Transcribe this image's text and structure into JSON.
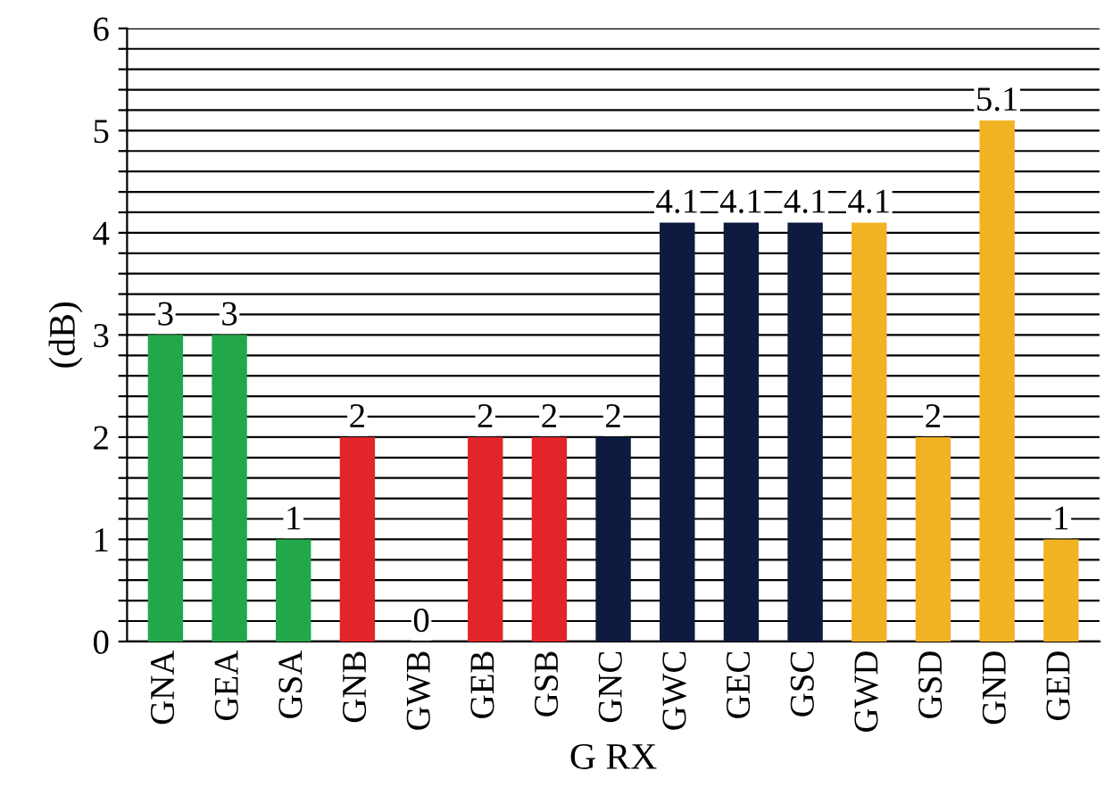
{
  "chart_data": {
    "type": "bar",
    "xlabel": "G RX",
    "ylabel": "(dB)",
    "categories": [
      "GNA",
      "GEA",
      "GSA",
      "GNB",
      "GWB",
      "GEB",
      "GSB",
      "GNC",
      "GWC",
      "GEC",
      "GSC",
      "GWD",
      "GSD",
      "GND",
      "GED"
    ],
    "values": [
      3,
      3,
      1,
      2,
      0,
      2,
      2,
      2,
      4.1,
      4.1,
      4.1,
      4.1,
      2,
      5.1,
      1
    ],
    "colors": [
      "#22a84a",
      "#22a84a",
      "#22a84a",
      "#e3242b",
      "#e3242b",
      "#e3242b",
      "#e3242b",
      "#0d1b40",
      "#0d1b40",
      "#0d1b40",
      "#0d1b40",
      "#f0b323",
      "#f0b323",
      "#f0b323",
      "#f0b323"
    ],
    "ylim": [
      0,
      6
    ],
    "yticks": [
      0,
      {
        "value": 0.2,
        "label": null
      },
      {
        "value": 0.4,
        "label": null
      },
      {
        "value": 0.6,
        "label": null
      },
      {
        "value": 0.8,
        "label": null
      },
      1,
      {
        "value": 1.2,
        "label": null
      },
      {
        "value": 1.4,
        "label": null
      },
      {
        "value": 1.6,
        "label": null
      },
      {
        "value": 1.8,
        "label": null
      },
      2,
      {
        "value": 2.2,
        "label": null
      },
      {
        "value": 2.4,
        "label": null
      },
      {
        "value": 2.6,
        "label": null
      },
      {
        "value": 2.8,
        "label": null
      },
      3,
      {
        "value": 3.2,
        "label": null
      },
      {
        "value": 3.4,
        "label": null
      },
      {
        "value": 3.6,
        "label": null
      },
      {
        "value": 3.8,
        "label": null
      },
      4,
      {
        "value": 4.2,
        "label": null
      },
      {
        "value": 4.4,
        "label": null
      },
      {
        "value": 4.6,
        "label": null
      },
      {
        "value": 4.8,
        "label": null
      },
      5,
      {
        "value": 5.2,
        "label": null
      },
      {
        "value": 5.4,
        "label": null
      },
      {
        "value": 5.6,
        "label": null
      },
      {
        "value": 5.8,
        "label": null
      },
      6
    ],
    "grid": "y",
    "data_labels": true
  }
}
